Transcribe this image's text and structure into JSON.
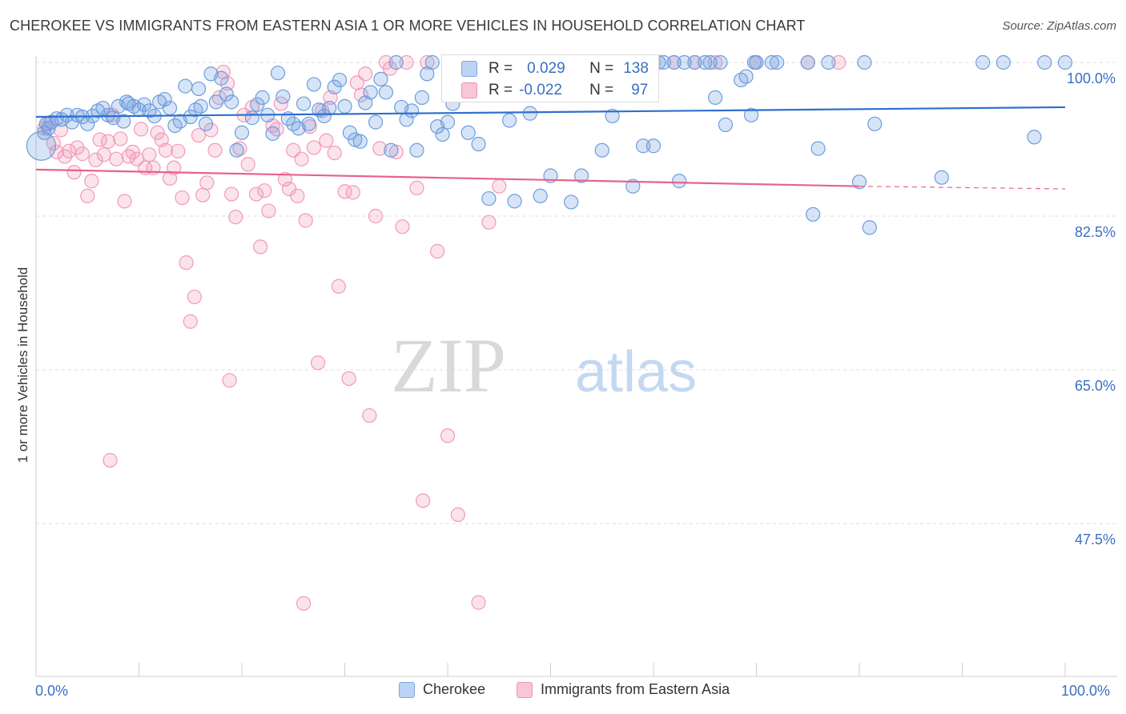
{
  "header": {
    "title": "CHEROKEE VS IMMIGRANTS FROM EASTERN ASIA 1 OR MORE VEHICLES IN HOUSEHOLD CORRELATION CHART",
    "source": "Source: ZipAtlas.com"
  },
  "watermark": {
    "zip": "ZIP",
    "atlas": "atlas"
  },
  "stats": {
    "cherokee": {
      "r_label": "R =",
      "r_value": "0.029",
      "n_label": "N =",
      "n_value": "138"
    },
    "immigrants": {
      "r_label": "R =",
      "r_value": "-0.022",
      "n_label": "N =",
      "n_value": "97"
    }
  },
  "chart_data": {
    "type": "scatter",
    "ylabel": "1 or more Vehicles in Household",
    "x_tick_labels": {
      "left": "0.0%",
      "right": "100.0%"
    },
    "y_ticks": [
      100.0,
      82.5,
      65.0,
      47.5
    ],
    "y_tick_labels": [
      "100.0%",
      "82.5%",
      "65.0%",
      "47.5%"
    ],
    "xlim": [
      0,
      100
    ],
    "ylim": [
      31.5,
      102.2
    ],
    "grid": true,
    "legend": [
      "Cherokee",
      "Immigrants from Eastern Asia"
    ],
    "colors": {
      "cherokee": "#6d9de0",
      "immigrants": "#f29ab8",
      "cherokee_line": "#2e6fd0",
      "immigrants_line": "#e8628e"
    },
    "trend_lines": {
      "cherokee": {
        "x0": 0,
        "y0": 93.8,
        "x1": 100,
        "y1": 94.9
      },
      "immigrants": {
        "x0": 0,
        "y0": 87.8,
        "x1": 80,
        "y1": 85.9,
        "dashed_to_x": 100,
        "dashed_to_y": 85.6
      }
    },
    "series": [
      {
        "name": "Cherokee",
        "points": [
          [
            0.5,
            90.5
          ],
          [
            0.8,
            92.0
          ],
          [
            1.0,
            93.0
          ],
          [
            1.2,
            92.5
          ],
          [
            1.5,
            93.2
          ],
          [
            2.0,
            93.6
          ],
          [
            2.5,
            93.5
          ],
          [
            3.0,
            94.0
          ],
          [
            3.5,
            93.2
          ],
          [
            4.0,
            94.0
          ],
          [
            4.5,
            93.8
          ],
          [
            5.0,
            93.0
          ],
          [
            5.5,
            93.9
          ],
          [
            6.0,
            94.5
          ],
          [
            6.5,
            94.8
          ],
          [
            7.0,
            94.0
          ],
          [
            7.5,
            93.7
          ],
          [
            8.0,
            95.0
          ],
          [
            8.5,
            93.3
          ],
          [
            9.0,
            95.3
          ],
          [
            9.5,
            95.0
          ],
          [
            10.0,
            94.6
          ],
          [
            10.5,
            95.2
          ],
          [
            11.0,
            94.5
          ],
          [
            11.5,
            93.9
          ],
          [
            12.0,
            95.5
          ],
          [
            12.5,
            95.8
          ],
          [
            13.0,
            94.8
          ],
          [
            13.5,
            92.8
          ],
          [
            14.0,
            93.3
          ],
          [
            14.5,
            97.3
          ],
          [
            15.0,
            93.8
          ],
          [
            15.5,
            94.6
          ],
          [
            16.0,
            95.0
          ],
          [
            16.5,
            93.0
          ],
          [
            17.0,
            98.7
          ],
          [
            17.5,
            95.5
          ],
          [
            18.0,
            98.2
          ],
          [
            18.5,
            96.4
          ],
          [
            19.0,
            95.5
          ],
          [
            19.5,
            90.0
          ],
          [
            20.0,
            92.0
          ],
          [
            21.0,
            93.7
          ],
          [
            21.5,
            95.2
          ],
          [
            22.0,
            96.0
          ],
          [
            22.5,
            94.0
          ],
          [
            23.0,
            91.9
          ],
          [
            23.5,
            98.8
          ],
          [
            24.0,
            96.1
          ],
          [
            24.5,
            93.6
          ],
          [
            25.0,
            93.0
          ],
          [
            25.5,
            92.5
          ],
          [
            26.0,
            95.3
          ],
          [
            26.5,
            93.0
          ],
          [
            27.0,
            97.5
          ],
          [
            27.5,
            94.6
          ],
          [
            28.0,
            93.9
          ],
          [
            28.5,
            94.8
          ],
          [
            29.0,
            97.2
          ],
          [
            29.5,
            98.0
          ],
          [
            30.0,
            95.0
          ],
          [
            30.5,
            92.0
          ],
          [
            31.0,
            91.2
          ],
          [
            31.5,
            91.0
          ],
          [
            32.0,
            95.4
          ],
          [
            32.5,
            96.6
          ],
          [
            33.0,
            93.2
          ],
          [
            33.5,
            98.1
          ],
          [
            34.0,
            96.6
          ],
          [
            34.5,
            90.0
          ],
          [
            35.0,
            100.0
          ],
          [
            35.5,
            94.9
          ],
          [
            36.0,
            93.5
          ],
          [
            36.5,
            94.5
          ],
          [
            37.0,
            90.0
          ],
          [
            37.5,
            96.0
          ],
          [
            38.0,
            98.7
          ],
          [
            38.5,
            100.0
          ],
          [
            39.0,
            92.7
          ],
          [
            39.5,
            91.8
          ],
          [
            40.0,
            93.2
          ],
          [
            40.5,
            95.3
          ],
          [
            41.0,
            100.0
          ],
          [
            42.0,
            92.0
          ],
          [
            42.5,
            100.0
          ],
          [
            43.0,
            90.7
          ],
          [
            44.0,
            84.5
          ],
          [
            45.0,
            100.0
          ],
          [
            46.0,
            93.4
          ],
          [
            46.5,
            84.2
          ],
          [
            47.0,
            100.0
          ],
          [
            48.0,
            94.2
          ],
          [
            49.0,
            84.8
          ],
          [
            50.0,
            87.1
          ],
          [
            51.0,
            100.0
          ],
          [
            52.0,
            84.1
          ],
          [
            53.0,
            87.1
          ],
          [
            55.0,
            90.0
          ],
          [
            56.0,
            93.9
          ],
          [
            58.0,
            85.9
          ],
          [
            59.0,
            90.5
          ],
          [
            60.0,
            90.5
          ],
          [
            60.5,
            100.0
          ],
          [
            61.0,
            100.0
          ],
          [
            62.0,
            100.0
          ],
          [
            62.5,
            86.5
          ],
          [
            63.0,
            100.0
          ],
          [
            64.0,
            100.0
          ],
          [
            65.0,
            100.0
          ],
          [
            65.5,
            100.0
          ],
          [
            66.0,
            96.0
          ],
          [
            67.0,
            92.9
          ],
          [
            68.5,
            98.0
          ],
          [
            69.0,
            98.4
          ],
          [
            69.5,
            94.0
          ],
          [
            70.0,
            100.0
          ],
          [
            71.5,
            100.0
          ],
          [
            72.0,
            100.0
          ],
          [
            75.0,
            100.0
          ],
          [
            76.0,
            90.2
          ],
          [
            77.0,
            100.0
          ],
          [
            80.0,
            86.4
          ],
          [
            80.5,
            100.0
          ],
          [
            81.0,
            81.2
          ],
          [
            81.5,
            93.0
          ],
          [
            88.0,
            86.9
          ],
          [
            92.0,
            100.0
          ],
          [
            94.0,
            100.0
          ],
          [
            97.0,
            91.5
          ],
          [
            98.0,
            100.0
          ],
          [
            100.0,
            100.0
          ],
          [
            75.5,
            82.7
          ],
          [
            66.5,
            100.0
          ],
          [
            45.5,
            100.0
          ],
          [
            51.5,
            100.0
          ],
          [
            69.8,
            100.0
          ],
          [
            15.8,
            97.0
          ],
          [
            8.8,
            95.5
          ]
        ]
      },
      {
        "name": "Immigrants from Eastern Asia",
        "points": [
          [
            0.8,
            92.5
          ],
          [
            1.2,
            93.0
          ],
          [
            1.7,
            90.8
          ],
          [
            2.0,
            89.8
          ],
          [
            2.4,
            92.3
          ],
          [
            2.8,
            89.3
          ],
          [
            3.2,
            89.9
          ],
          [
            3.7,
            87.5
          ],
          [
            4.0,
            90.3
          ],
          [
            4.5,
            89.6
          ],
          [
            5.0,
            84.8
          ],
          [
            5.4,
            86.5
          ],
          [
            5.8,
            88.9
          ],
          [
            6.2,
            91.2
          ],
          [
            6.6,
            89.5
          ],
          [
            7.0,
            91.0
          ],
          [
            7.4,
            94.0
          ],
          [
            7.8,
            89.0
          ],
          [
            8.2,
            91.3
          ],
          [
            8.6,
            84.2
          ],
          [
            9.0,
            89.3
          ],
          [
            9.4,
            89.8
          ],
          [
            9.8,
            89.0
          ],
          [
            10.2,
            92.4
          ],
          [
            10.6,
            88.0
          ],
          [
            11.0,
            89.5
          ],
          [
            11.4,
            88.0
          ],
          [
            11.8,
            92.0
          ],
          [
            12.2,
            91.2
          ],
          [
            12.6,
            90.0
          ],
          [
            13.0,
            86.8
          ],
          [
            13.4,
            88.0
          ],
          [
            13.8,
            89.9
          ],
          [
            14.2,
            84.6
          ],
          [
            14.6,
            77.2
          ],
          [
            15.0,
            70.5
          ],
          [
            15.4,
            73.3
          ],
          [
            15.8,
            91.7
          ],
          [
            16.2,
            84.9
          ],
          [
            16.6,
            86.3
          ],
          [
            17.0,
            92.3
          ],
          [
            17.4,
            90.0
          ],
          [
            17.8,
            96.0
          ],
          [
            18.2,
            98.9
          ],
          [
            18.6,
            97.6
          ],
          [
            19.0,
            85.0
          ],
          [
            19.4,
            82.4
          ],
          [
            19.8,
            90.2
          ],
          [
            20.2,
            94.0
          ],
          [
            20.6,
            88.4
          ],
          [
            21.0,
            94.9
          ],
          [
            21.4,
            85.0
          ],
          [
            21.8,
            79.0
          ],
          [
            22.2,
            85.4
          ],
          [
            22.6,
            83.1
          ],
          [
            23.0,
            92.8
          ],
          [
            23.4,
            92.4
          ],
          [
            23.8,
            95.3
          ],
          [
            24.2,
            86.7
          ],
          [
            24.6,
            85.6
          ],
          [
            25.0,
            90.0
          ],
          [
            25.4,
            84.8
          ],
          [
            25.8,
            89.0
          ],
          [
            26.2,
            82.0
          ],
          [
            26.6,
            92.7
          ],
          [
            27.0,
            90.3
          ],
          [
            27.4,
            65.8
          ],
          [
            27.8,
            94.5
          ],
          [
            28.2,
            91.1
          ],
          [
            28.6,
            96.0
          ],
          [
            29.0,
            89.7
          ],
          [
            29.4,
            74.5
          ],
          [
            30.0,
            85.3
          ],
          [
            30.4,
            64.0
          ],
          [
            30.8,
            85.2
          ],
          [
            31.2,
            97.7
          ],
          [
            31.6,
            96.3
          ],
          [
            32.0,
            98.7
          ],
          [
            32.4,
            59.8
          ],
          [
            33.0,
            82.5
          ],
          [
            33.4,
            90.2
          ],
          [
            34.0,
            100.0
          ],
          [
            34.4,
            99.3
          ],
          [
            35.0,
            89.8
          ],
          [
            35.6,
            81.3
          ],
          [
            36.0,
            100.0
          ],
          [
            37.0,
            85.7
          ],
          [
            37.6,
            50.1
          ],
          [
            38.0,
            100.0
          ],
          [
            39.0,
            78.5
          ],
          [
            40.0,
            57.5
          ],
          [
            41.0,
            48.5
          ],
          [
            42.0,
            100.0
          ],
          [
            43.0,
            38.5
          ],
          [
            44.0,
            81.8
          ],
          [
            45.0,
            85.9
          ],
          [
            47.0,
            100.0
          ],
          [
            48.0,
            100.0
          ],
          [
            50.0,
            100.0
          ],
          [
            52.0,
            100.0
          ],
          [
            54.0,
            100.0
          ],
          [
            56.0,
            100.0
          ],
          [
            58.0,
            100.0
          ],
          [
            60.0,
            100.0
          ],
          [
            62.0,
            100.0
          ],
          [
            64.0,
            100.0
          ],
          [
            66.0,
            100.0
          ],
          [
            70.0,
            100.0
          ],
          [
            75.0,
            100.0
          ],
          [
            78.0,
            100.0
          ],
          [
            7.2,
            54.7
          ],
          [
            26.0,
            38.4
          ],
          [
            18.8,
            63.8
          ]
        ]
      }
    ]
  },
  "legend_bottom": {
    "cherokee": "Cherokee",
    "immigrants": "Immigrants from Eastern Asia"
  }
}
